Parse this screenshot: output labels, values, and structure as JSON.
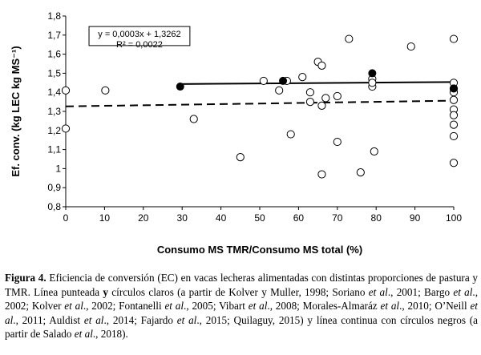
{
  "chart_data": {
    "type": "scatter",
    "xlabel": "Consumo MS TMR/Consumo MS total (%)",
    "ylabel": "Ef. conv. (kg LEC kg MS⁻¹)",
    "xlim": [
      0,
      100
    ],
    "ylim": [
      0.8,
      1.8
    ],
    "xticks": [
      "0",
      "10",
      "20",
      "30",
      "40",
      "50",
      "60",
      "70",
      "80",
      "90",
      "100"
    ],
    "yticks": [
      "0,8",
      "0,9",
      "1",
      "1,1",
      "1,2",
      "1,3",
      "1,4",
      "1,5",
      "1,6",
      "1,7",
      "1,8"
    ],
    "grid": false,
    "legend": "none",
    "equation_box": {
      "line1": "y = 0,0003x + 1,3262",
      "line2": "R² = 0,0022",
      "x1": 6,
      "x2": 32,
      "y1": 1.645,
      "y2": 1.745
    },
    "series": [
      {
        "marker": "open-circle",
        "color": "#000000",
        "points": [
          [
            0,
            1.41
          ],
          [
            0,
            1.21
          ],
          [
            10.2,
            1.41
          ],
          [
            33,
            1.26
          ],
          [
            45,
            1.06
          ],
          [
            51,
            1.46
          ],
          [
            55,
            1.41
          ],
          [
            57,
            1.46
          ],
          [
            58,
            1.18
          ],
          [
            61,
            1.48
          ],
          [
            63,
            1.4
          ],
          [
            63,
            1.35
          ],
          [
            65,
            1.56
          ],
          [
            66,
            1.54
          ],
          [
            66,
            1.33
          ],
          [
            66,
            0.97
          ],
          [
            67,
            1.37
          ],
          [
            70,
            1.14
          ],
          [
            70,
            1.38
          ],
          [
            73,
            1.68
          ],
          [
            76,
            0.98
          ],
          [
            79,
            1.43
          ],
          [
            79,
            1.47
          ],
          [
            79,
            1.45
          ],
          [
            79.5,
            1.09
          ],
          [
            89,
            1.64
          ],
          [
            100,
            1.68
          ],
          [
            100,
            1.45
          ],
          [
            100,
            1.42
          ],
          [
            100,
            1.4
          ],
          [
            100,
            1.36
          ],
          [
            100,
            1.31
          ],
          [
            100,
            1.28
          ],
          [
            100,
            1.23
          ],
          [
            100,
            1.17
          ],
          [
            100,
            1.03
          ]
        ],
        "trendline": {
          "style": "dashed",
          "slope": 0.0003,
          "intercept": 1.3262,
          "x_range": [
            0,
            100
          ]
        }
      },
      {
        "marker": "filled-circle",
        "color": "#000000",
        "points": [
          [
            29.5,
            1.43
          ],
          [
            56,
            1.46
          ],
          [
            79,
            1.5
          ],
          [
            100,
            1.42
          ]
        ],
        "trendline": {
          "style": "solid",
          "slope": 0.00015,
          "intercept": 1.439,
          "x_range": [
            29.5,
            100
          ]
        }
      }
    ]
  },
  "caption": {
    "label": "Figura 4.",
    "segments": [
      {
        "text": " Eficiencia de conversión (EC) en vacas lecheras alimentadas con distintas proporciones de pastura y TMR. Línea punteada ",
        "style": "normal"
      },
      {
        "text": "y",
        "style": "bold"
      },
      {
        "text": " círculos claros (a partir de Kolver y Muller, 1998; Soriano ",
        "style": "normal"
      },
      {
        "text": "et al",
        "style": "italic"
      },
      {
        "text": "., 2001; Bargo ",
        "style": "normal"
      },
      {
        "text": "et al",
        "style": "italic"
      },
      {
        "text": "., 2002; Kolver ",
        "style": "normal"
      },
      {
        "text": "et al",
        "style": "italic"
      },
      {
        "text": "., 2002; Fontanelli ",
        "style": "normal"
      },
      {
        "text": "et al",
        "style": "italic"
      },
      {
        "text": "., 2005; Vibart ",
        "style": "normal"
      },
      {
        "text": "et al",
        "style": "italic"
      },
      {
        "text": "., 2008; Morales-Almaráz ",
        "style": "normal"
      },
      {
        "text": "et al",
        "style": "italic"
      },
      {
        "text": "., 2010; O’Neill ",
        "style": "normal"
      },
      {
        "text": "et al",
        "style": "italic"
      },
      {
        "text": "., 2011; Auldist ",
        "style": "normal"
      },
      {
        "text": "et al",
        "style": "italic"
      },
      {
        "text": "., 2014; Fajardo ",
        "style": "normal"
      },
      {
        "text": "et al",
        "style": "italic"
      },
      {
        "text": "., 2015; Quilaguy, 2015) y línea continua con círculos negros (a partir de Salado ",
        "style": "normal"
      },
      {
        "text": "et al",
        "style": "italic"
      },
      {
        "text": "., 2018).",
        "style": "normal"
      }
    ]
  }
}
